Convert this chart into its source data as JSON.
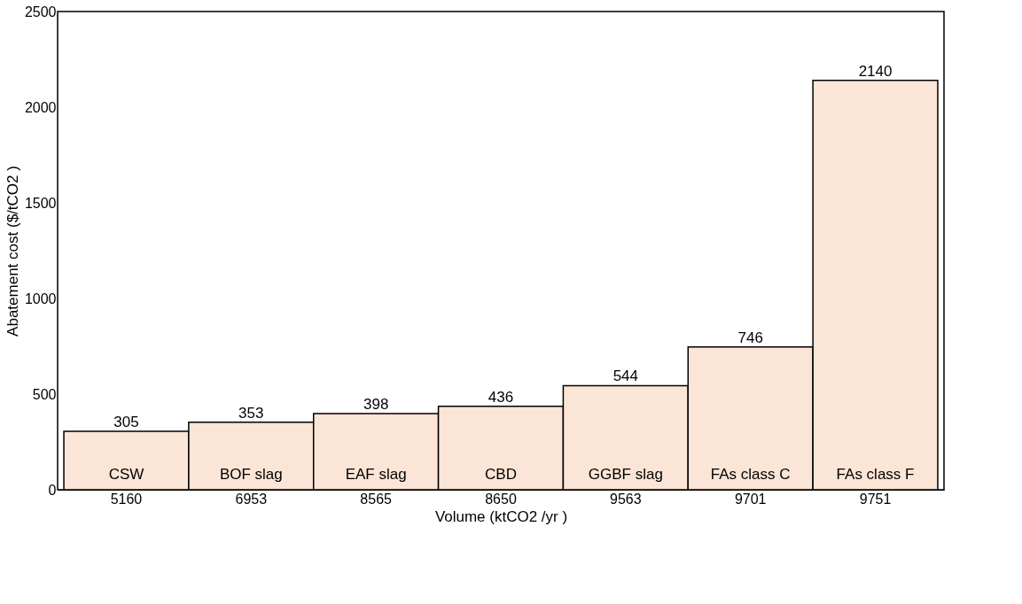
{
  "chart_data": {
    "type": "bar",
    "xlabel": "Volume (ktCO2 /yr )",
    "ylabel": "Abatement cost ($/tCO2 )",
    "categories": [
      "5160",
      "6953",
      "8565",
      "8650",
      "9563",
      "9701",
      "9751"
    ],
    "values": [
      305,
      353,
      398,
      436,
      544,
      746,
      2140
    ],
    "color": "#fbe5d6",
    "data_labels": true,
    "ylim": [
      0,
      2500
    ],
    "yticks": [
      0,
      500,
      1000,
      1500,
      2000,
      2500
    ],
    "grid": false,
    "annotations": [
      "CSW",
      "BOF slag",
      "EAF slag",
      "CBD",
      "GGBF slag",
      "FAs class C",
      "FAs class F"
    ]
  }
}
